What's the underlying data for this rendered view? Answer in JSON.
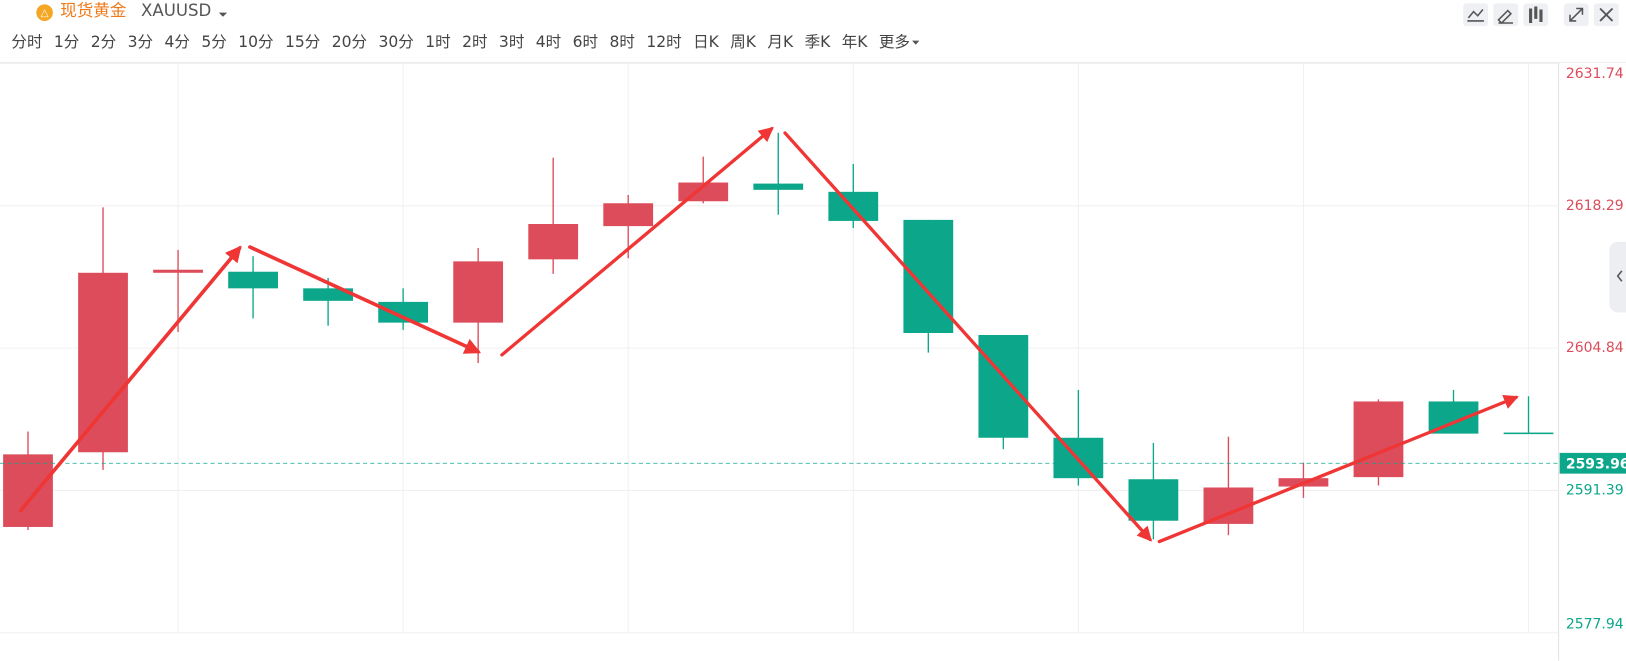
{
  "header": {
    "name": "现货黄金",
    "symbol": "XAUUSD"
  },
  "toolbar": {
    "periods": [
      "分时",
      "1分",
      "2分",
      "3分",
      "4分",
      "5分",
      "10分",
      "15分",
      "20分",
      "30分",
      "1时",
      "2时",
      "3时",
      "4时",
      "6时",
      "8时",
      "12时",
      "日K",
      "周K",
      "月K",
      "季K",
      "年K",
      "更多"
    ],
    "active": "1时"
  },
  "chart_data": {
    "type": "candlestick",
    "open": [
      2587.94,
      2595.0,
      2611.96,
      2612.06,
      2610.49,
      2609.21,
      2607.25,
      2613.23,
      2616.37,
      2618.72,
      2620.39,
      2619.61,
      2616.96,
      2606.08,
      2596.37,
      2592.45,
      2588.23,
      2591.76,
      2592.65,
      2599.8,
      2596.86
    ],
    "high": [
      2596.96,
      2618.14,
      2614.12,
      2613.53,
      2611.47,
      2610.49,
      2614.31,
      2622.84,
      2619.31,
      2622.94,
      2625.19,
      2622.25,
      2616.96,
      2606.08,
      2600.88,
      2595.88,
      2596.47,
      2594.02,
      2600.0,
      2600.88,
      2600.29
    ],
    "low": [
      2587.65,
      2593.33,
      2606.37,
      2607.65,
      2606.96,
      2606.57,
      2603.43,
      2611.86,
      2613.33,
      2618.53,
      2617.45,
      2616.18,
      2604.41,
      2595.29,
      2591.86,
      2586.76,
      2587.16,
      2590.69,
      2591.86,
      2596.76,
      2596.76
    ],
    "close": [
      2594.8,
      2611.96,
      2612.25,
      2610.49,
      2609.31,
      2607.25,
      2613.04,
      2616.57,
      2618.53,
      2620.49,
      2619.8,
      2616.86,
      2606.27,
      2596.37,
      2592.55,
      2588.53,
      2591.67,
      2592.55,
      2599.8,
      2596.76,
      2596.76
    ],
    "up_color": "#dc4c5a",
    "down_color": "#0ca68a",
    "last_price": 2593.96,
    "ylim": [
      2577.94,
      2631.74
    ],
    "yticks": [
      2577.94,
      2591.39,
      2604.84,
      2618.29,
      2631.74
    ],
    "grid": true
  }
}
